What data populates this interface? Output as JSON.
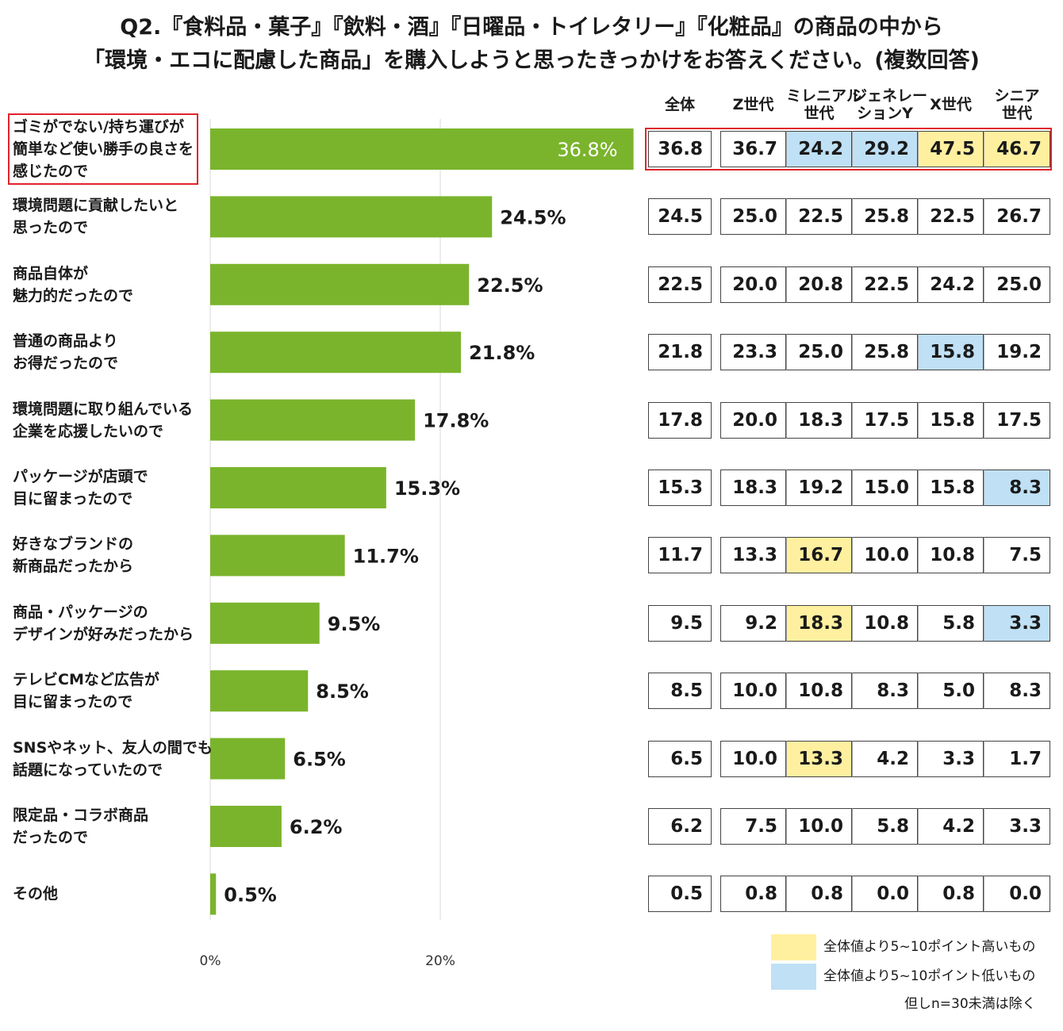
{
  "title_line1": "Q2.『食料品・菓子』『飲料・酒』『日曜品・トイレタリー』『化粧品』の商品の中から",
  "title_line2": "「環境・エコに配慮した商品」を購入しようと思ったきっかけをお答えください。(複数回答)",
  "columns": [
    {
      "id": "all",
      "lines": [
        "全体"
      ]
    },
    {
      "id": "z",
      "lines": [
        "Z世代"
      ]
    },
    {
      "id": "millennial",
      "lines": [
        "ミレニアル",
        "世代"
      ]
    },
    {
      "id": "geny",
      "lines": [
        "ジェネレー",
        "ションY"
      ]
    },
    {
      "id": "x",
      "lines": [
        "X世代"
      ]
    },
    {
      "id": "senior",
      "lines": [
        "シニア",
        "世代"
      ]
    }
  ],
  "legend": {
    "high": "全体値より5~10ポイント高いもの",
    "low": "全体値より5~10ポイント低いもの",
    "note": "但しn=30未満は除く",
    "high_color": "#fff0a0",
    "low_color": "#bfe0f5"
  },
  "chart_data": {
    "type": "bar",
    "orientation": "horizontal",
    "bar_color": "#7ab42c",
    "xlim": [
      0,
      40
    ],
    "ticks": [
      0,
      20
    ],
    "tick_labels": [
      "0%",
      "20%"
    ],
    "categories": [
      {
        "lines": [
          "ゴミがでない/持ち運びが",
          "簡単など使い勝手の良さを",
          "感じたので"
        ],
        "value": 36.8,
        "label": "36.8%",
        "highlight": true,
        "row": [
          "36.8",
          "36.7",
          "24.2",
          "29.2",
          "47.5",
          "46.7"
        ],
        "marks": [
          "",
          "",
          "lo",
          "lo",
          "hi",
          "hi"
        ]
      },
      {
        "lines": [
          "環境問題に貢献したいと",
          "思ったので"
        ],
        "value": 24.5,
        "label": "24.5%",
        "row": [
          "24.5",
          "25.0",
          "22.5",
          "25.8",
          "22.5",
          "26.7"
        ],
        "marks": [
          "",
          "",
          "",
          "",
          "",
          ""
        ]
      },
      {
        "lines": [
          "商品自体が",
          "魅力的だったので"
        ],
        "value": 22.5,
        "label": "22.5%",
        "row": [
          "22.5",
          "20.0",
          "20.8",
          "22.5",
          "24.2",
          "25.0"
        ],
        "marks": [
          "",
          "",
          "",
          "",
          "",
          ""
        ]
      },
      {
        "lines": [
          "普通の商品より",
          "お得だったので"
        ],
        "value": 21.8,
        "label": "21.8%",
        "row": [
          "21.8",
          "23.3",
          "25.0",
          "25.8",
          "15.8",
          "19.2"
        ],
        "marks": [
          "",
          "",
          "",
          "",
          "lo",
          ""
        ]
      },
      {
        "lines": [
          "環境問題に取り組んでいる",
          "企業を応援したいので"
        ],
        "value": 17.8,
        "label": "17.8%",
        "row": [
          "17.8",
          "20.0",
          "18.3",
          "17.5",
          "15.8",
          "17.5"
        ],
        "marks": [
          "",
          "",
          "",
          "",
          "",
          ""
        ]
      },
      {
        "lines": [
          "パッケージが店頭で",
          "目に留まったので"
        ],
        "value": 15.3,
        "label": "15.3%",
        "row": [
          "15.3",
          "18.3",
          "19.2",
          "15.0",
          "15.8",
          "8.3"
        ],
        "marks": [
          "",
          "",
          "",
          "",
          "",
          "lo"
        ]
      },
      {
        "lines": [
          "好きなブランドの",
          "新商品だったから"
        ],
        "value": 11.7,
        "label": "11.7%",
        "row": [
          "11.7",
          "13.3",
          "16.7",
          "10.0",
          "10.8",
          "7.5"
        ],
        "marks": [
          "",
          "",
          "hi",
          "",
          "",
          ""
        ]
      },
      {
        "lines": [
          "商品・パッケージの",
          "デザインが好みだったから"
        ],
        "value": 9.5,
        "label": "9.5%",
        "row": [
          "9.5",
          "9.2",
          "18.3",
          "10.8",
          "5.8",
          "3.3"
        ],
        "marks": [
          "",
          "",
          "hi",
          "",
          "",
          "lo"
        ]
      },
      {
        "lines": [
          "テレビCMなど広告が",
          "目に留まったので"
        ],
        "value": 8.5,
        "label": "8.5%",
        "row": [
          "8.5",
          "10.0",
          "10.8",
          "8.3",
          "5.0",
          "8.3"
        ],
        "marks": [
          "",
          "",
          "",
          "",
          "",
          ""
        ]
      },
      {
        "lines": [
          "SNSやネット、友人の間でも",
          "話題になっていたので"
        ],
        "value": 6.5,
        "label": "6.5%",
        "row": [
          "6.5",
          "10.0",
          "13.3",
          "4.2",
          "3.3",
          "1.7"
        ],
        "marks": [
          "",
          "",
          "hi",
          "",
          "",
          ""
        ]
      },
      {
        "lines": [
          "限定品・コラボ商品",
          "だったので"
        ],
        "value": 6.2,
        "label": "6.2%",
        "row": [
          "6.2",
          "7.5",
          "10.0",
          "5.8",
          "4.2",
          "3.3"
        ],
        "marks": [
          "",
          "",
          "",
          "",
          "",
          ""
        ]
      },
      {
        "lines": [
          "その他"
        ],
        "value": 0.5,
        "label": "0.5%",
        "row": [
          "0.5",
          "0.8",
          "0.8",
          "0.0",
          "0.8",
          "0.0"
        ],
        "marks": [
          "",
          "",
          "",
          "",
          "",
          ""
        ]
      }
    ]
  }
}
